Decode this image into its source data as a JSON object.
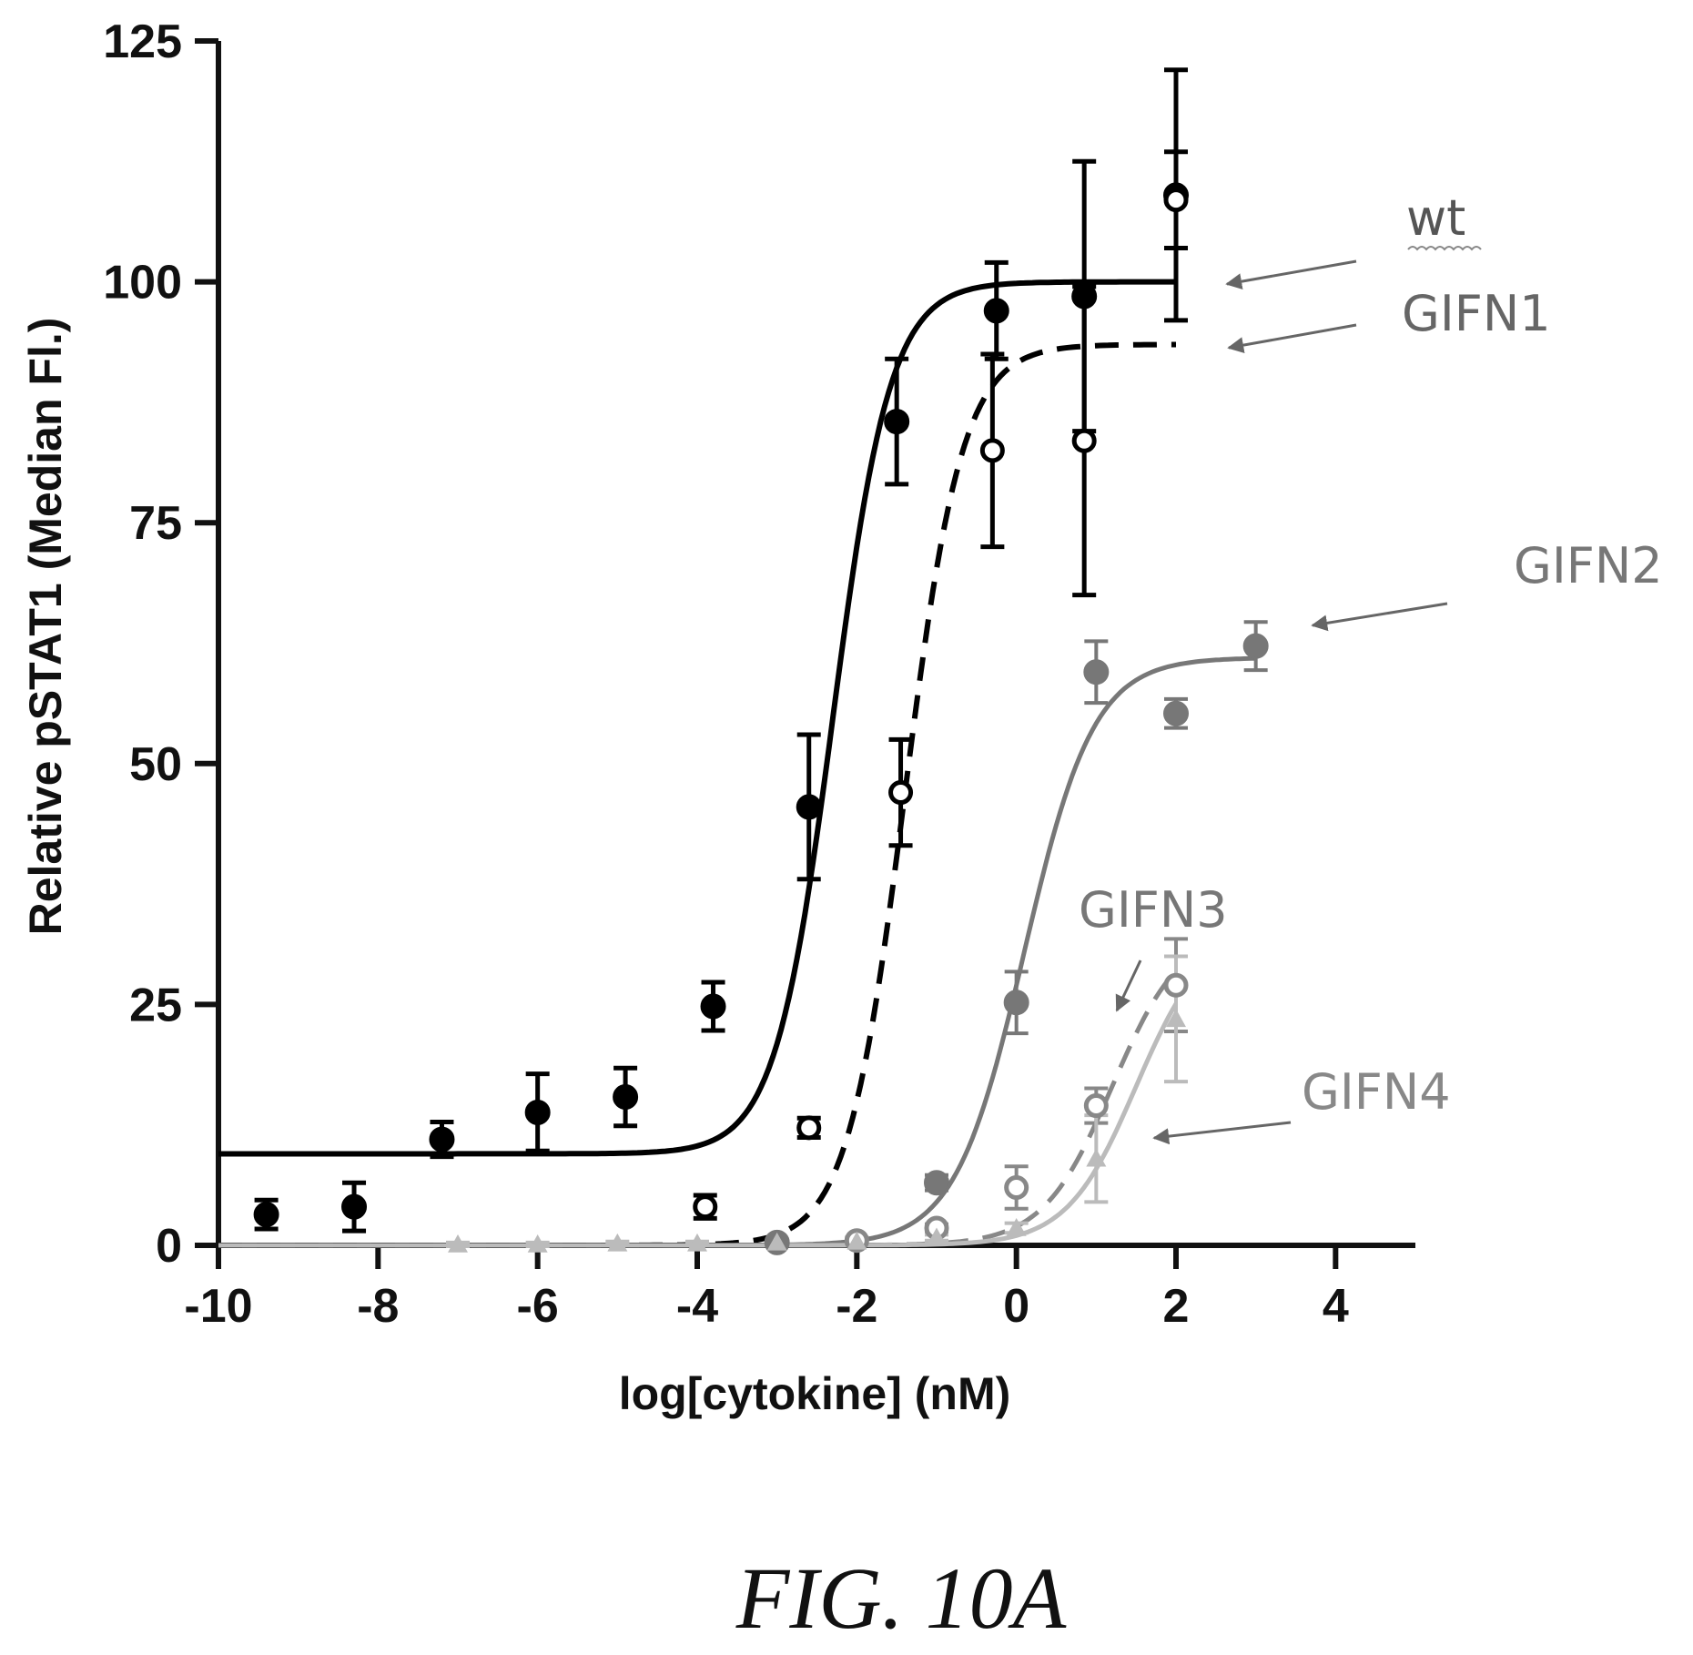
{
  "chart_data": {
    "type": "scatter",
    "xlabel": "log[cytokine] (nM)",
    "ylabel": "Relative pSTAT1 (Median Fl.)",
    "xlim": [
      -10,
      5
    ],
    "ylim": [
      0,
      125
    ],
    "xticks": [
      -10,
      -8,
      -6,
      -4,
      -2,
      0,
      2,
      4
    ],
    "yticks": [
      0,
      25,
      50,
      75,
      100,
      125
    ],
    "grid": false,
    "legend": "inline arrows at right",
    "series": [
      {
        "name": "wt",
        "color": "#000000",
        "marker": "filled-circle",
        "line": "solid",
        "fit": {
          "bottom": 9.5,
          "top": 100,
          "ec50_log": -2.3,
          "hill": 1.2,
          "x_range": [
            -10,
            2
          ]
        },
        "points": [
          {
            "x": -9.4,
            "y": 3.2,
            "err": 1.5
          },
          {
            "x": -8.3,
            "y": 4.0,
            "err": 2.5
          },
          {
            "x": -7.2,
            "y": 11.0,
            "err": 1.8
          },
          {
            "x": -6.0,
            "y": 13.8,
            "err": 4.0
          },
          {
            "x": -4.9,
            "y": 15.4,
            "err": 3.0
          },
          {
            "x": -3.8,
            "y": 24.8,
            "err": 2.5
          },
          {
            "x": -2.6,
            "y": 45.5,
            "err": 7.5
          },
          {
            "x": -1.5,
            "y": 85.5,
            "err": 6.5
          },
          {
            "x": -0.25,
            "y": 97.0,
            "err": 5.0
          },
          {
            "x": 0.85,
            "y": 98.5,
            "err": 14.0
          },
          {
            "x": 2.0,
            "y": 109.0,
            "err": 13.0
          }
        ]
      },
      {
        "name": "GIFN1",
        "color": "#000000",
        "marker": "open-circle",
        "line": "dashed",
        "fit": {
          "bottom": 0,
          "top": 93.5,
          "ec50_log": -1.4,
          "hill": 1.2,
          "x_range": [
            -10,
            2
          ]
        },
        "points": [
          {
            "x": -3.9,
            "y": 4.0,
            "err": 1.2
          },
          {
            "x": -2.6,
            "y": 12.2,
            "err": 1.0
          },
          {
            "x": -1.45,
            "y": 47.0,
            "err": 5.5
          },
          {
            "x": -0.3,
            "y": 82.5,
            "err": 10.0
          },
          {
            "x": 0.85,
            "y": 83.5,
            "err": 16.0
          },
          {
            "x": 2.0,
            "y": 108.5,
            "err": 5.0
          }
        ]
      },
      {
        "name": "GIFN2",
        "color": "#777777",
        "marker": "filled-circle",
        "line": "solid",
        "fit": {
          "bottom": 0,
          "top": 61,
          "ec50_log": 0.1,
          "hill": 1.0,
          "x_range": [
            -10,
            3
          ]
        },
        "points": [
          {
            "x": -3.0,
            "y": 0.3,
            "err": 0.3
          },
          {
            "x": -1.0,
            "y": 6.5,
            "err": 0.8
          },
          {
            "x": 0.0,
            "y": 25.2,
            "err": 3.2
          },
          {
            "x": 1.0,
            "y": 59.5,
            "err": 3.2
          },
          {
            "x": 2.0,
            "y": 55.2,
            "err": 1.5
          },
          {
            "x": 3.0,
            "y": 62.2,
            "err": 2.5
          }
        ]
      },
      {
        "name": "GIFN3",
        "color": "#888888",
        "marker": "open-circle",
        "line": "dashed",
        "fit": {
          "bottom": 0,
          "top": 33,
          "ec50_log": 1.2,
          "hill": 1.0,
          "x_range": [
            -10,
            2
          ]
        },
        "points": [
          {
            "x": -2.0,
            "y": 0.5,
            "err": 0.3
          },
          {
            "x": -1.0,
            "y": 1.8,
            "err": 0.4
          },
          {
            "x": 0.0,
            "y": 6.0,
            "err": 2.2
          },
          {
            "x": 1.0,
            "y": 14.5,
            "err": 1.8
          },
          {
            "x": 2.0,
            "y": 27.0,
            "err": 4.8
          }
        ]
      },
      {
        "name": "GIFN4",
        "color": "#bbbbbb",
        "marker": "filled-triangle",
        "line": "solid",
        "fit": {
          "bottom": 0,
          "top": 33,
          "ec50_log": 1.5,
          "hill": 1.0,
          "x_range": [
            -10,
            2
          ]
        },
        "points": [
          {
            "x": -7.0,
            "y": 0.1,
            "err": 0.2
          },
          {
            "x": -6.0,
            "y": 0.1,
            "err": 0.2
          },
          {
            "x": -5.0,
            "y": 0.2,
            "err": 0.2
          },
          {
            "x": -4.0,
            "y": 0.2,
            "err": 0.2
          },
          {
            "x": -3.0,
            "y": 0.3,
            "err": 0.2
          },
          {
            "x": -2.0,
            "y": 0.4,
            "err": 0.2
          },
          {
            "x": -1.0,
            "y": 0.8,
            "err": 0.3
          },
          {
            "x": 0.0,
            "y": 1.8,
            "err": 0.5
          },
          {
            "x": 1.0,
            "y": 9.0,
            "err": 4.5
          },
          {
            "x": 2.0,
            "y": 23.5,
            "err": 6.5
          }
        ]
      }
    ]
  },
  "labels": [
    {
      "text": "wt",
      "series": 0
    },
    {
      "text": "GIFN1",
      "series": 1
    },
    {
      "text": "GIFN2",
      "series": 2
    },
    {
      "text": "GIFN3",
      "series": 3
    },
    {
      "text": "GIFN4",
      "series": 4
    }
  ],
  "caption": "FIG. 10A"
}
